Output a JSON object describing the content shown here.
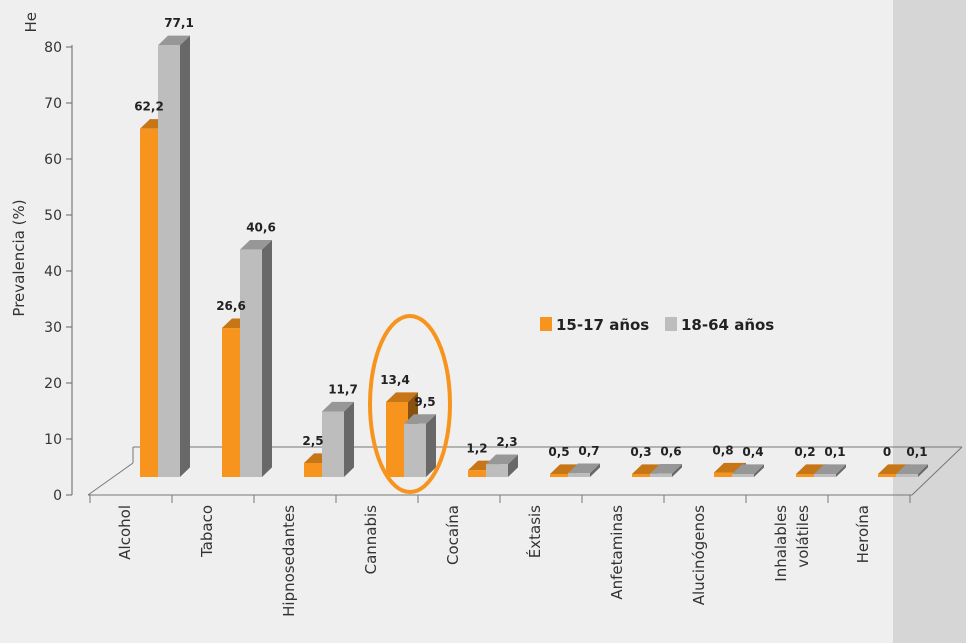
{
  "chart_data": {
    "type": "bar",
    "title_fragment": "He",
    "ylabel": "Prevalencia (%)",
    "ylim": [
      0,
      80
    ],
    "yticks": [
      0,
      10,
      20,
      30,
      40,
      50,
      60,
      70,
      80
    ],
    "categories": [
      [
        "Alcohol"
      ],
      [
        "Tabaco"
      ],
      [
        "Hipnosedantes"
      ],
      [
        "Cannabis"
      ],
      [
        "Cocaína"
      ],
      [
        "Éxtasis"
      ],
      [
        "Anfetaminas"
      ],
      [
        "Alucinógenos"
      ],
      [
        "Inhalables",
        "volátiles"
      ],
      [
        "Heroína"
      ]
    ],
    "series": [
      {
        "name": "15-17 años",
        "color": "#f7941d",
        "values": [
          62.2,
          26.6,
          2.5,
          13.4,
          1.2,
          0.5,
          0.3,
          0.8,
          0.2,
          0
        ],
        "labels": [
          "62,2",
          "26,6",
          "2,5",
          "13,4",
          "1,2",
          "0,5",
          "0,3",
          "0,8",
          "0,2",
          "0"
        ]
      },
      {
        "name": "18-64 años",
        "color": "#bdbdbd",
        "values": [
          77.1,
          40.6,
          11.7,
          9.5,
          2.3,
          0.7,
          0.6,
          0.4,
          0.1,
          0.1
        ],
        "labels": [
          "77,1",
          "40,6",
          "11,7",
          "9,5",
          "2,3",
          "0,7",
          "0,6",
          "0,4",
          "0,1",
          "0,1"
        ]
      }
    ],
    "highlight_category": "Cannabis",
    "legend_position": "center-right",
    "grid": false
  }
}
